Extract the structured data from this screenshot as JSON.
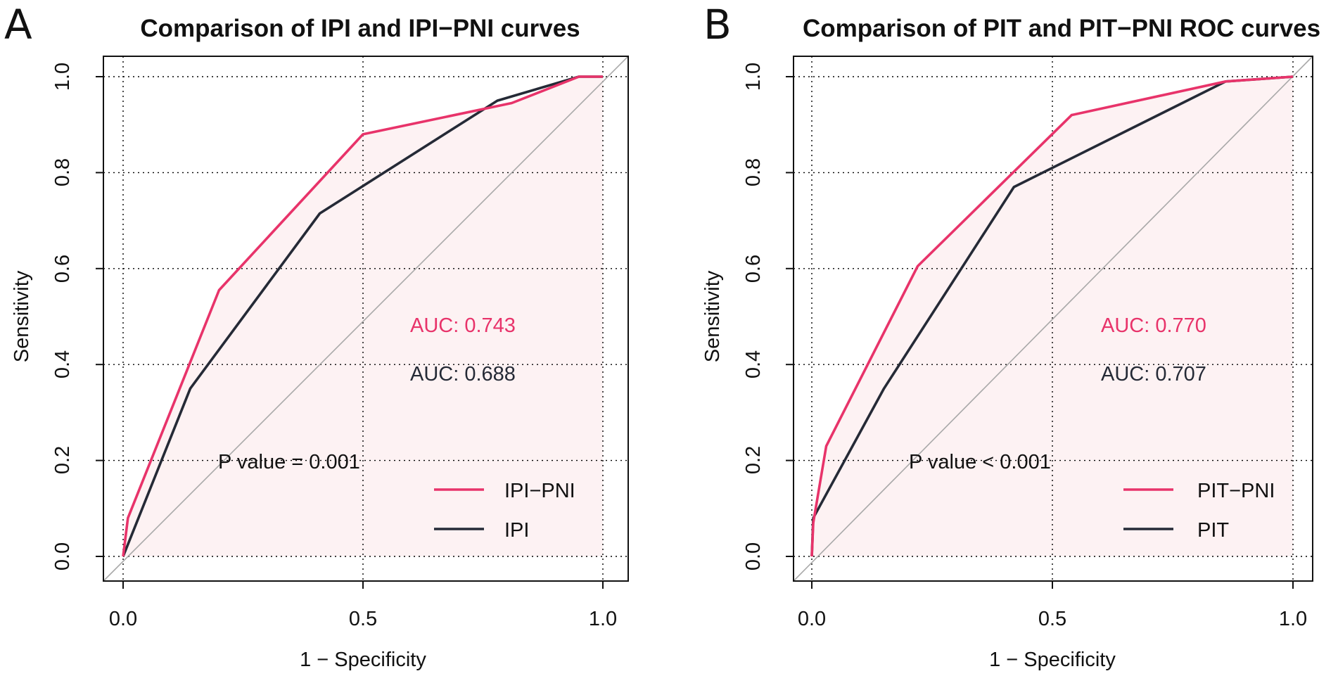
{
  "colors": {
    "pni_line": "#E8336A",
    "base_line": "#252A36",
    "fill": "#FDF2F3",
    "diagonal": "#A9A9A9",
    "grid": "#000000",
    "text": "#111111"
  },
  "chart_data": [
    {
      "type": "line",
      "panel_label": "A",
      "title": "Comparison of IPI and IPI−PNI curves",
      "xlabel": "1 − Specificity",
      "ylabel": "Sensitivity",
      "xlim": [
        0.0,
        1.0
      ],
      "ylim": [
        0.0,
        1.0
      ],
      "xticks": [
        "0.0",
        "0.5",
        "1.0"
      ],
      "yticks": [
        "0.0",
        "0.2",
        "0.4",
        "0.6",
        "0.8",
        "1.0"
      ],
      "grid": true,
      "legend_position": "bottom-right",
      "series": [
        {
          "name": "IPI−PNI",
          "color_key": "pni_line",
          "x": [
            0.0,
            0.01,
            0.2,
            0.5,
            0.81,
            0.95,
            1.0
          ],
          "y": [
            0.0,
            0.08,
            0.555,
            0.88,
            0.945,
            1.0,
            1.0
          ]
        },
        {
          "name": "IPI",
          "color_key": "base_line",
          "x": [
            0.0,
            0.14,
            0.41,
            0.78,
            0.95,
            1.0
          ],
          "y": [
            0.0,
            0.35,
            0.715,
            0.95,
            1.0,
            1.0
          ]
        }
      ],
      "annotations": {
        "auc_pni": "AUC: 0.743",
        "auc_base": "AUC: 0.688",
        "p_value": "P value = 0.001"
      }
    },
    {
      "type": "line",
      "panel_label": "B",
      "title": "Comparison of PIT and PIT−PNI ROC curves",
      "xlabel": "1 − Specificity",
      "ylabel": "Sensitivity",
      "xlim": [
        0.0,
        1.0
      ],
      "ylim": [
        0.0,
        1.0
      ],
      "xticks": [
        "0.0",
        "0.5",
        "1.0"
      ],
      "yticks": [
        "0.0",
        "0.2",
        "0.4",
        "0.6",
        "0.8",
        "1.0"
      ],
      "grid": true,
      "legend_position": "bottom-right",
      "series": [
        {
          "name": "PIT−PNI",
          "color_key": "pni_line",
          "x": [
            0.0,
            0.003,
            0.03,
            0.22,
            0.54,
            0.86,
            1.0
          ],
          "y": [
            0.0,
            0.07,
            0.23,
            0.605,
            0.92,
            0.99,
            1.0
          ]
        },
        {
          "name": "PIT",
          "color_key": "base_line",
          "x": [
            0.0,
            0.003,
            0.15,
            0.42,
            0.86,
            1.0
          ],
          "y": [
            0.0,
            0.08,
            0.35,
            0.77,
            0.99,
            1.0
          ]
        }
      ],
      "annotations": {
        "auc_pni": "AUC: 0.770",
        "auc_base": "AUC: 0.707",
        "p_value": "P value < 0.001"
      }
    }
  ]
}
